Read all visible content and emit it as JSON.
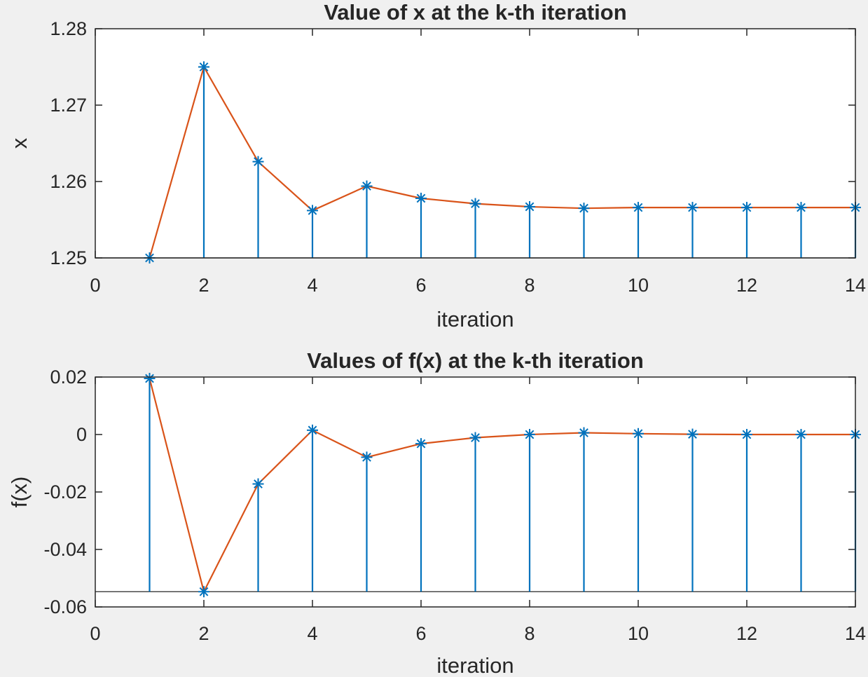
{
  "colors": {
    "stem": "#0072bd",
    "line": "#d95319",
    "axes": "#262626",
    "background": "#f0f0f0",
    "plot_area": "#ffffff"
  },
  "chart_data": [
    {
      "type": "line",
      "title": "Value of x at the k-th iteration",
      "xlabel": "iteration",
      "ylabel": "x",
      "xlim": [
        0,
        14
      ],
      "ylim": [
        1.25,
        1.28
      ],
      "xticks": [
        0,
        2,
        4,
        6,
        8,
        10,
        12,
        14
      ],
      "yticks": [
        1.25,
        1.26,
        1.27,
        1.28
      ],
      "xtick_labels": [
        "0",
        "2",
        "4",
        "6",
        "8",
        "10",
        "12",
        "14"
      ],
      "ytick_labels": [
        "1.25",
        "1.26",
        "1.27",
        "1.28"
      ],
      "stem_baseline": 1.25,
      "grid": false,
      "series": [
        {
          "style": "stem + line, asterisk markers",
          "x": [
            1,
            2,
            3,
            4,
            5,
            6,
            7,
            8,
            9,
            10,
            11,
            12,
            13,
            14
          ],
          "y": [
            1.25,
            1.275,
            1.2626,
            1.2562,
            1.2594,
            1.2578,
            1.2571,
            1.2567,
            1.2565,
            1.2566,
            1.2566,
            1.2566,
            1.2566,
            1.2566
          ]
        }
      ]
    },
    {
      "type": "line",
      "title": "Values of f(x) at the k-th iteration",
      "xlabel": "iteration",
      "ylabel": "f(x)",
      "xlim": [
        0,
        14
      ],
      "ylim": [
        -0.06,
        0.02
      ],
      "xticks": [
        0,
        2,
        4,
        6,
        8,
        10,
        12,
        14
      ],
      "yticks": [
        -0.06,
        -0.04,
        -0.02,
        0,
        0.02
      ],
      "xtick_labels": [
        "0",
        "2",
        "4",
        "6",
        "8",
        "10",
        "12",
        "14"
      ],
      "ytick_labels": [
        "-0.06",
        "-0.04",
        "-0.02",
        "0",
        "0.02"
      ],
      "stem_baseline": -0.0547,
      "grid": false,
      "series": [
        {
          "style": "stem + line, asterisk markers",
          "x": [
            1,
            2,
            3,
            4,
            5,
            6,
            7,
            8,
            9,
            10,
            11,
            12,
            13,
            14
          ],
          "y": [
            0.0195,
            -0.0547,
            -0.0172,
            0.0015,
            -0.0079,
            -0.0032,
            -0.0011,
            0.0,
            0.0006,
            0.0003,
            0.0001,
            0.0,
            0.0,
            0.0
          ]
        }
      ]
    }
  ]
}
